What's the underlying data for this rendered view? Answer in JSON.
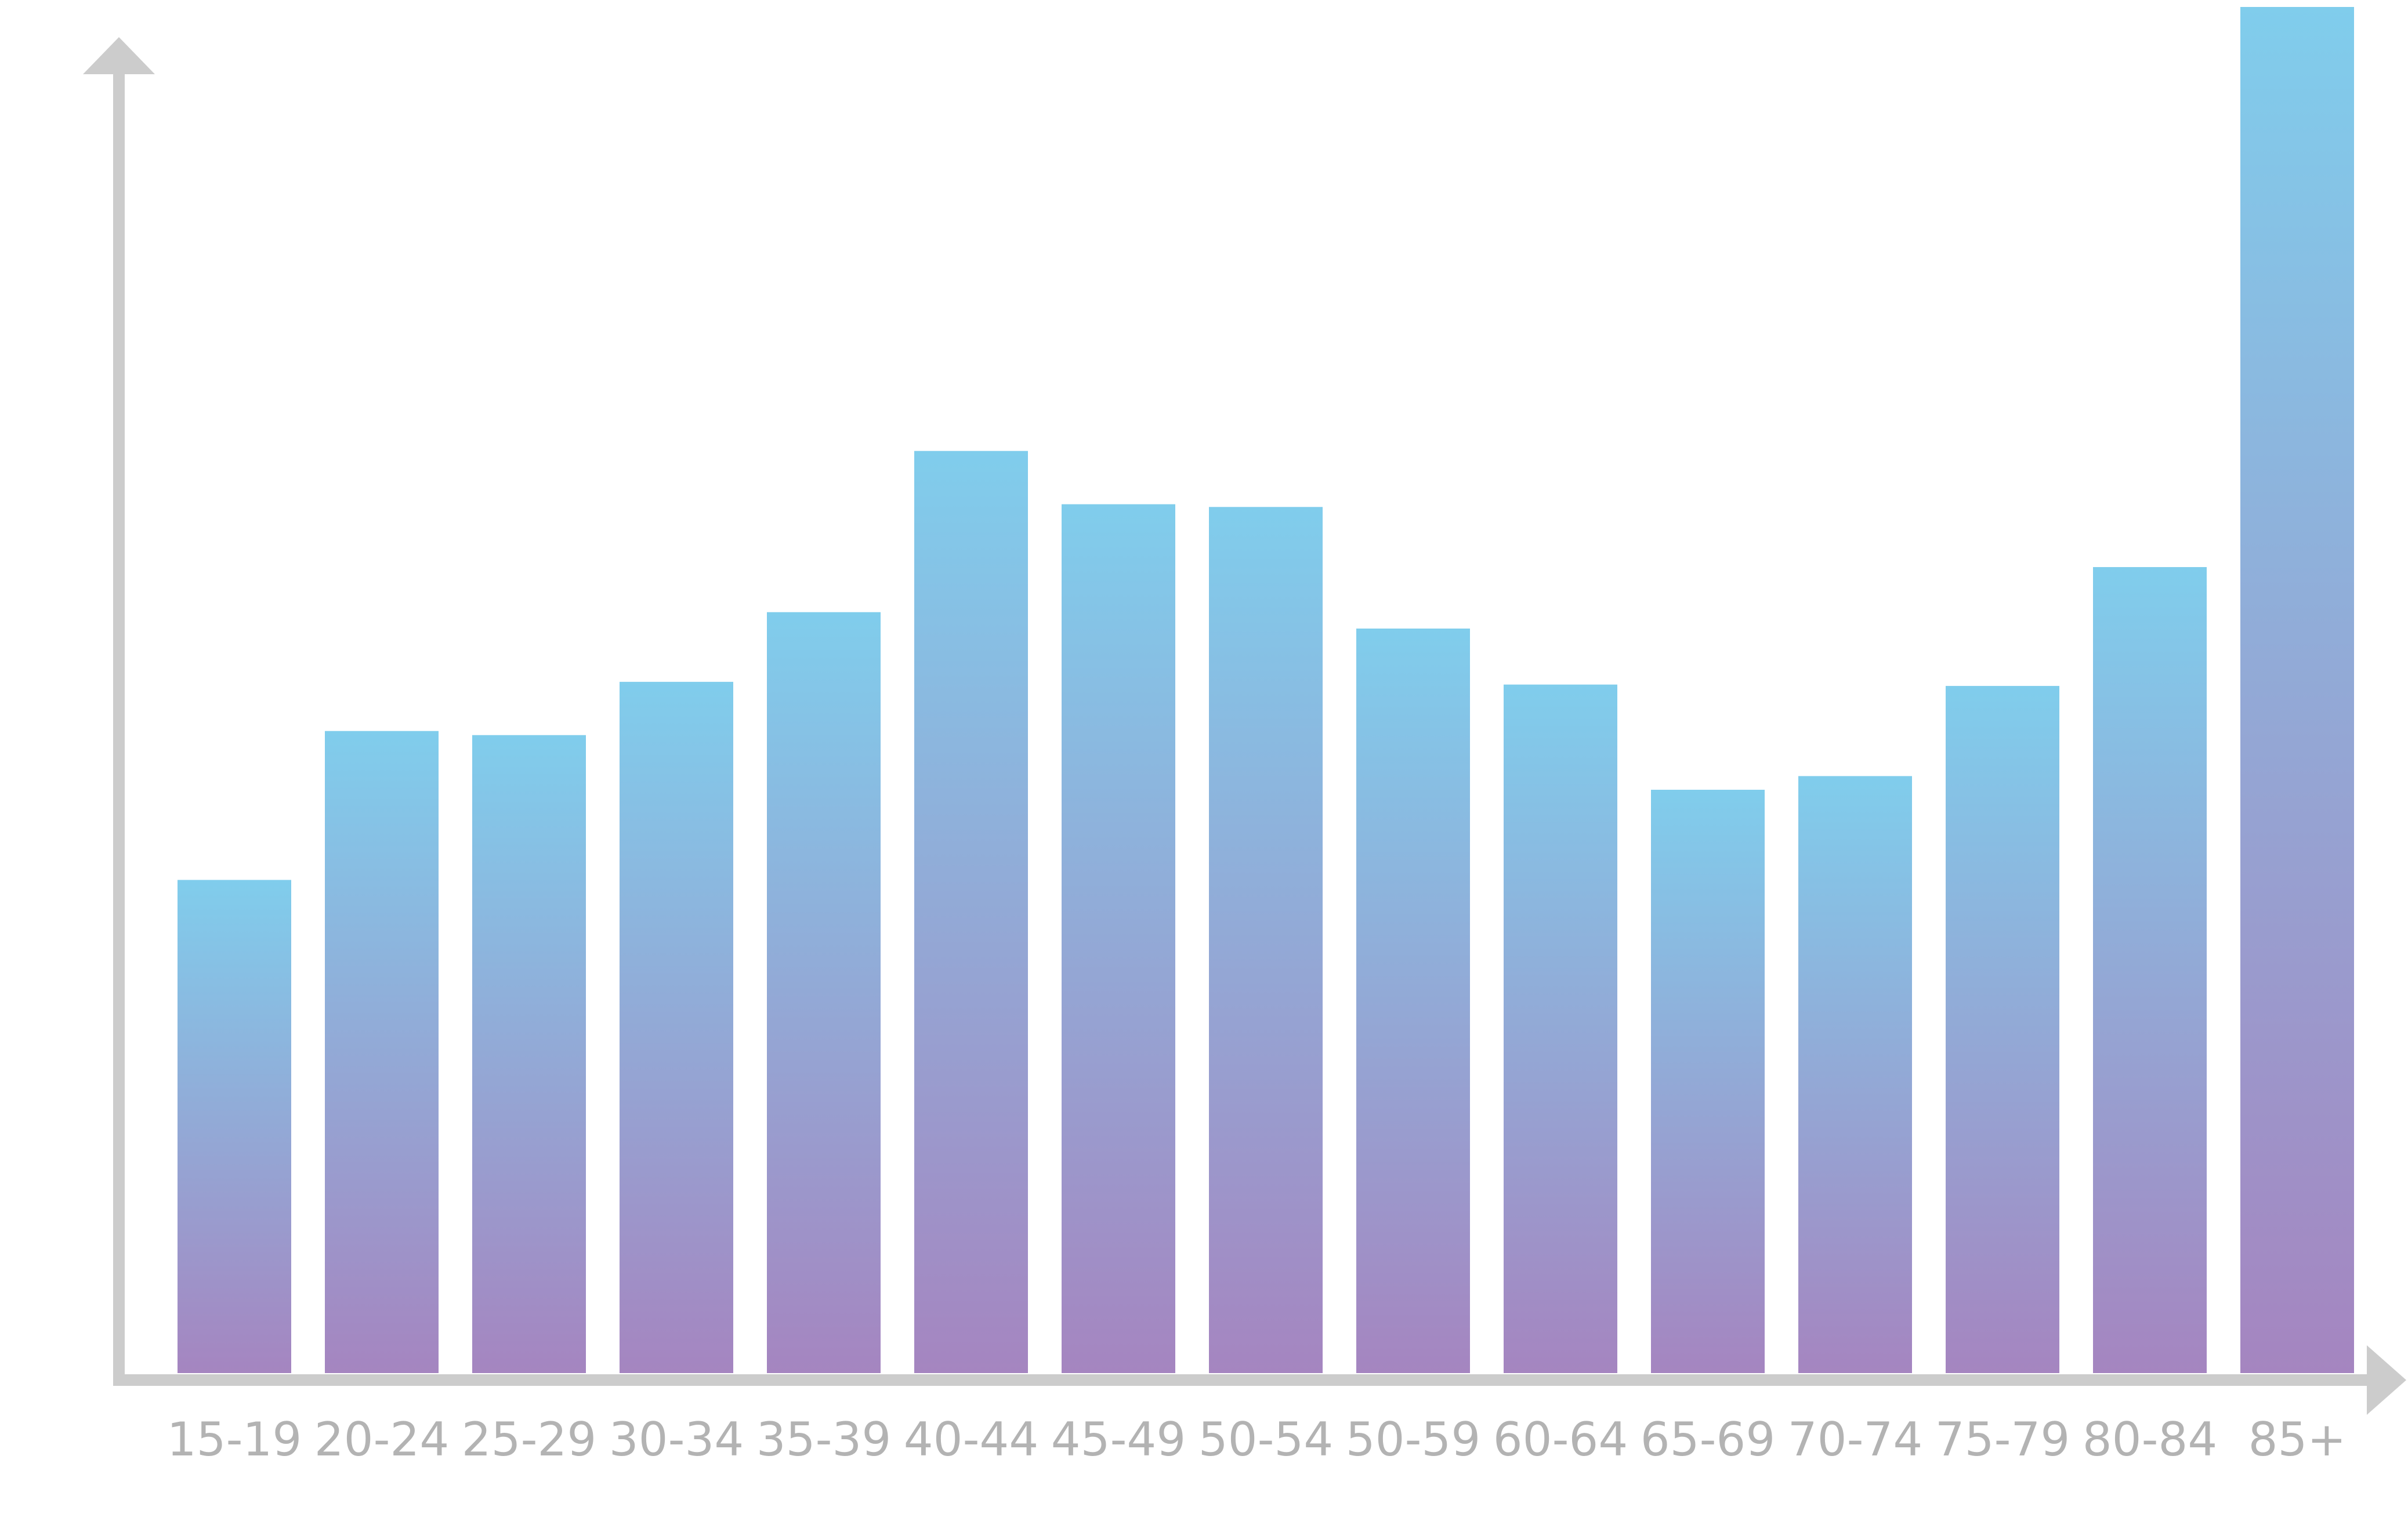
{
  "chart_data": {
    "type": "bar",
    "categories": [
      "15-19",
      "20-24",
      "25-29",
      "30-34",
      "35-39",
      "40-44",
      "45-49",
      "50-54",
      "50-59",
      "60-64",
      "65-69",
      "70-74",
      "75-79",
      "80-84",
      "85+"
    ],
    "values": [
      36.1,
      47.0,
      46.7,
      50.6,
      55.7,
      67.5,
      63.6,
      63.4,
      54.5,
      50.4,
      42.7,
      43.7,
      50.3,
      59.0,
      100.0
    ],
    "ylim": [
      0,
      100
    ],
    "grid": false,
    "legend": "none",
    "title": "",
    "xlabel": "",
    "ylabel": ""
  },
  "colors": {
    "bar_top": "#80cdec",
    "bar_bottom": "#a585c0",
    "axis": "#cccccc",
    "tick_text": "#b3b3b3",
    "background": "#ffffff"
  }
}
